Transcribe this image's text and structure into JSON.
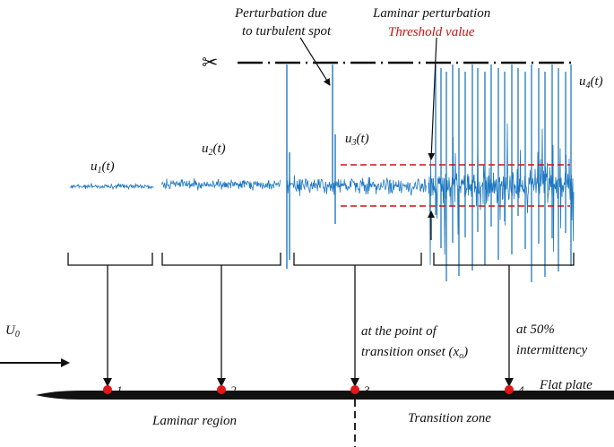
{
  "labels": {
    "perturbation_turbulent_line1": "Perturbation due",
    "perturbation_turbulent_line2": "to turbulent spot",
    "laminar_perturbation": "Laminar perturbation",
    "threshold_value": "Threshold value",
    "u1": "u",
    "u1_sub": "1",
    "u2": "u",
    "u2_sub": "2",
    "u3": "u",
    "u3_sub": "3",
    "u4": "u",
    "u4_sub": "4",
    "t_suffix": "(t)",
    "u0": "U",
    "u0_sub": "0",
    "onset_line1": "at the point of",
    "onset_line2": "transition onset (x",
    "onset_sub": "o",
    "onset_close": ")",
    "intermittency_line1": "at 50%",
    "intermittency_line2": "intermittency",
    "flat_plate": "Flat plate",
    "laminar_region": "Laminar region",
    "transition_zone": "Transition zone",
    "station_1": "1",
    "station_2": "2",
    "station_3": "3",
    "station_4": "4"
  },
  "colors": {
    "signal": "#1f78c1",
    "threshold": "#d01010",
    "marker": "#e01818",
    "ink": "#111111"
  },
  "icons": {
    "scissors": "scissors-icon"
  }
}
